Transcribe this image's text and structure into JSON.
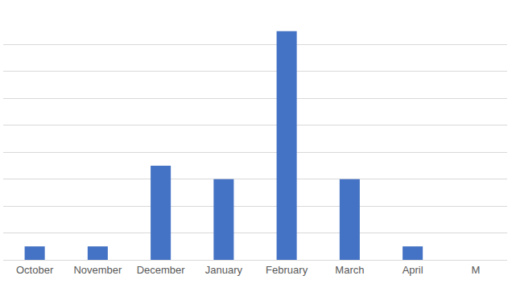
{
  "chart_data": {
    "type": "bar",
    "categories": [
      "October",
      "November",
      "December",
      "January",
      "February",
      "March",
      "April",
      "M"
    ],
    "values": [
      1,
      1,
      7,
      6,
      17,
      6,
      1,
      null
    ],
    "color": "#4472c4",
    "ylim": [
      0,
      18
    ],
    "yticks": [
      0,
      2,
      4,
      6,
      8,
      10,
      12,
      14,
      16,
      18
    ],
    "grid": true,
    "tick_labels": "x"
  }
}
